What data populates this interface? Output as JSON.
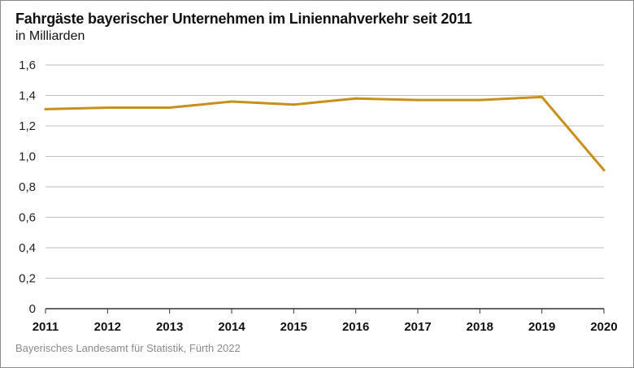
{
  "header": {
    "title": "Fahrgäste bayerischer Unternehmen im Liniennahverkehr seit 2011",
    "subtitle": "in Milliarden"
  },
  "footer": {
    "source": "Bayerisches Landesamt für Statistik, Fürth 2022"
  },
  "colors": {
    "line": "#c8901a",
    "grid": "#bfbfbf",
    "axis": "#333333"
  },
  "chart_data": {
    "type": "line",
    "title": "Fahrgäste bayerischer Unternehmen im Liniennahverkehr seit 2011",
    "subtitle": "in Milliarden",
    "xlabel": "",
    "ylabel": "",
    "ylim": [
      0,
      1.6
    ],
    "yticks": [
      "0",
      "0,2",
      "0,4",
      "0,6",
      "0,8",
      "1,0",
      "1,2",
      "1,4",
      "1,6"
    ],
    "grid": "horizontal",
    "legend": "none",
    "categories": [
      "2011",
      "2012",
      "2013",
      "2014",
      "2015",
      "2016",
      "2017",
      "2018",
      "2019",
      "2020"
    ],
    "series": [
      {
        "values": [
          1.31,
          1.32,
          1.32,
          1.36,
          1.34,
          1.38,
          1.37,
          1.37,
          1.39,
          0.91
        ]
      }
    ]
  }
}
